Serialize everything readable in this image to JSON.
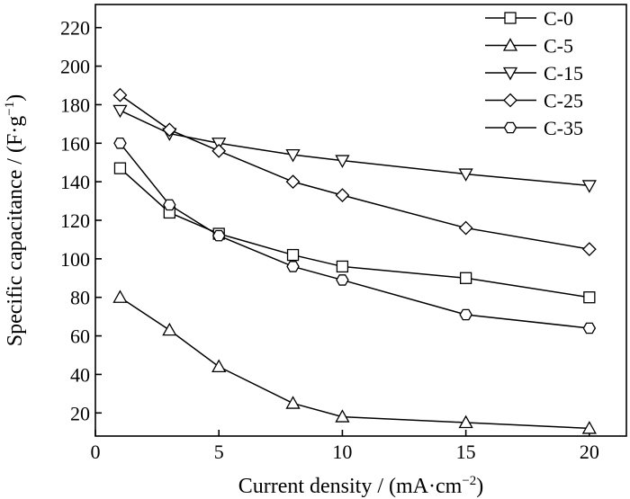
{
  "chart_data": {
    "type": "line",
    "xlabel": "Current density / (mA·cm",
    "xlabel_sup": "−2",
    "xlabel_close": ")",
    "ylabel": "Specific capacitance / (F·g",
    "ylabel_sup": "−1",
    "ylabel_close": ")",
    "xlim": [
      0,
      21.5
    ],
    "ylim": [
      8,
      232
    ],
    "xticks": [
      0,
      5,
      10,
      15,
      20
    ],
    "yticks": [
      20,
      40,
      60,
      80,
      100,
      120,
      140,
      160,
      180,
      200,
      220
    ],
    "grid": false,
    "legend_position": "top-right",
    "x": [
      1,
      3,
      5,
      8,
      10,
      15,
      20
    ],
    "series": [
      {
        "name": "C-0",
        "marker": "square",
        "values": [
          147,
          124,
          113,
          102,
          96,
          90,
          80
        ]
      },
      {
        "name": "C-5",
        "marker": "triangle-up",
        "values": [
          80,
          63,
          44,
          25,
          18,
          15,
          12
        ]
      },
      {
        "name": "C-15",
        "marker": "triangle-down",
        "values": [
          177,
          165,
          160,
          154,
          151,
          144,
          138
        ]
      },
      {
        "name": "C-25",
        "marker": "diamond",
        "values": [
          185,
          167,
          156,
          140,
          133,
          116,
          105
        ]
      },
      {
        "name": "C-35",
        "marker": "hexagon",
        "values": [
          160,
          128,
          112,
          96,
          89,
          71,
          64
        ]
      }
    ]
  }
}
